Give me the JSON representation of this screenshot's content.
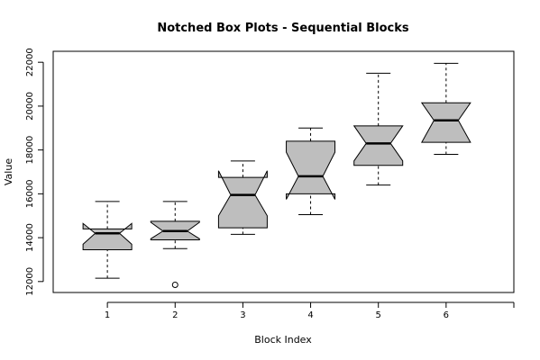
{
  "chart_data": {
    "type": "boxplot",
    "title": "Notched Box Plots - Sequential Blocks",
    "xlabel": "Block Index",
    "ylabel": "Value",
    "categories": [
      "1",
      "2",
      "3",
      "4",
      "5",
      "6"
    ],
    "ylim": [
      11500,
      22500
    ],
    "xlim": [
      0.2,
      7.0
    ],
    "y_ticks": [
      12000,
      14000,
      16000,
      18000,
      20000,
      22000
    ],
    "x_ticks": [
      1,
      2,
      3,
      4,
      5,
      6,
      7
    ],
    "x_tick_labels": [
      "1",
      "2",
      "3",
      "4",
      "5",
      "6",
      ""
    ],
    "box_fill": "#bebebe",
    "boxes": [
      {
        "whisker_low": 12150,
        "q1": 13450,
        "median": 14200,
        "q3": 14400,
        "whisker_high": 15650,
        "notch_low": 13700,
        "notch_high": 14650,
        "outliers": []
      },
      {
        "whisker_low": 13500,
        "q1": 13900,
        "median": 14300,
        "q3": 14750,
        "whisker_high": 15650,
        "notch_low": 13950,
        "notch_high": 14700,
        "outliers": [
          11850
        ]
      },
      {
        "whisker_low": 14150,
        "q1": 14450,
        "median": 15950,
        "q3": 16750,
        "whisker_high": 17500,
        "notch_low": 15000,
        "notch_high": 17050,
        "outliers": []
      },
      {
        "whisker_low": 15050,
        "q1": 16000,
        "median": 16800,
        "q3": 18400,
        "whisker_high": 19000,
        "notch_low": 15750,
        "notch_high": 17900,
        "outliers": []
      },
      {
        "whisker_low": 16400,
        "q1": 17300,
        "median": 18300,
        "q3": 19100,
        "whisker_high": 21500,
        "notch_low": 17500,
        "notch_high": 19100,
        "outliers": []
      },
      {
        "whisker_low": 17800,
        "q1": 18350,
        "median": 19350,
        "q3": 20150,
        "whisker_high": 21950,
        "notch_low": 18350,
        "notch_high": 20150,
        "outliers": []
      }
    ]
  }
}
